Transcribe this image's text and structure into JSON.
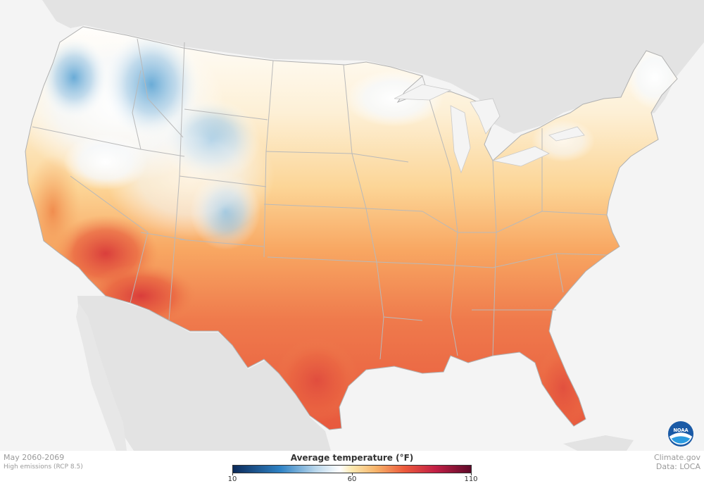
{
  "caption": {
    "period": "May 2060-2069",
    "scenario": "High emissions (RCP 8.5)"
  },
  "credits": {
    "site": "Climate.gov",
    "data_source": "Data: LOCA"
  },
  "legend": {
    "title": "Average temperature (°F)",
    "min": 10,
    "mid": 60,
    "max": 110,
    "min_label": "10",
    "mid_label": "60",
    "max_label": "110",
    "stops": [
      {
        "value": 10,
        "color": "#0b2a5a"
      },
      {
        "value": 30,
        "color": "#2f83c5"
      },
      {
        "value": 45,
        "color": "#bcd8ec"
      },
      {
        "value": 55,
        "color": "#ffffff"
      },
      {
        "value": 60,
        "color": "#fde9b0"
      },
      {
        "value": 70,
        "color": "#f7b46a"
      },
      {
        "value": 82,
        "color": "#ec5a3c"
      },
      {
        "value": 95,
        "color": "#c21f45"
      },
      {
        "value": 110,
        "color": "#5e0a2a"
      }
    ]
  },
  "logo": {
    "text": "NOAA",
    "color": "#1a5aa6"
  },
  "map_colors": {
    "ocean": "#f4f4f4",
    "land": "#e3e3e3",
    "border": "#c9c9c9"
  }
}
